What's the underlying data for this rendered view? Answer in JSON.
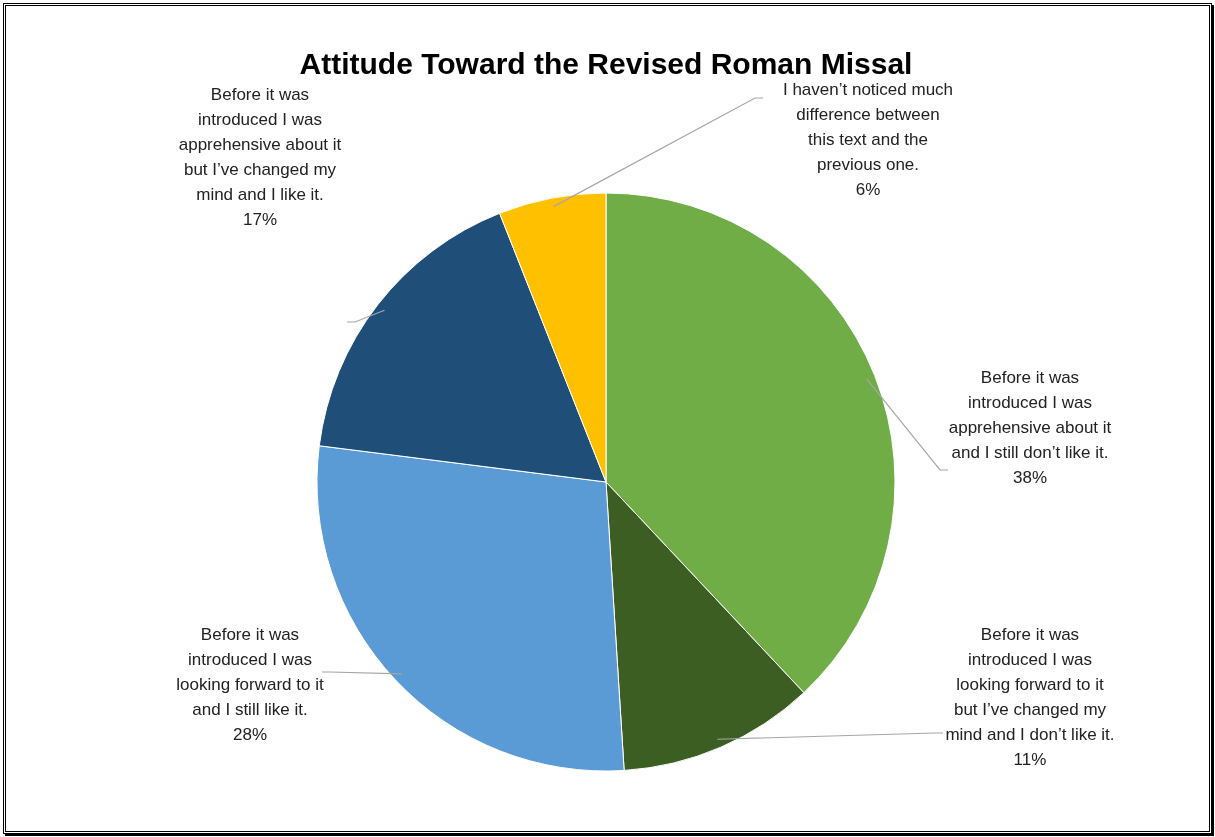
{
  "chart_data": {
    "type": "pie",
    "title": "Attitude Toward the Revised Roman Missal",
    "categories": [
      "Before it was introduced I was apprehensive about it and I still don’t like it.",
      "Before it was introduced I was looking forward to it but I’ve changed my mind and I don’t like it.",
      "Before it was introduced I was looking forward to it and I still like it.",
      "Before it was introduced I was apprehensive about it but I’ve changed my mind and I like it.",
      "I haven’t noticed much difference between this text and the previous one."
    ],
    "values": [
      38,
      11,
      28,
      17,
      6
    ],
    "colors": [
      "#70ad47",
      "#3d5e23",
      "#5b9bd5",
      "#1f4e79",
      "#ffc000"
    ],
    "value_labels": [
      "38%",
      "11%",
      "28%",
      "17%",
      "6%"
    ]
  }
}
